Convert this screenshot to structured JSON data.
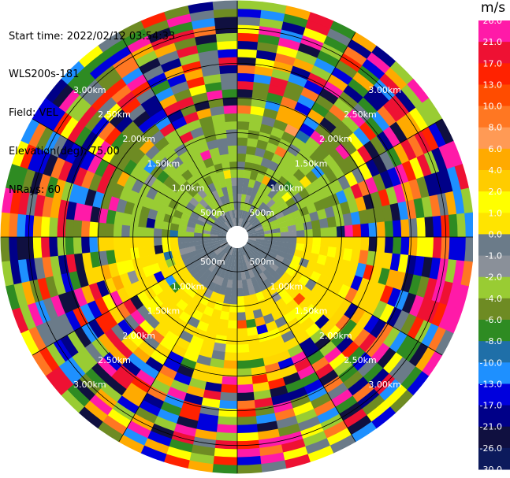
{
  "header": {
    "start_time": "Start time: 2022/02/12 03:54:33",
    "instrument": "WLS200s-181",
    "field": "Field: VEL",
    "elevation": "Elevation(deg): 75.00",
    "nrays": "NRays: 60"
  },
  "colorbar": {
    "unit": "m/s",
    "ticks": [
      "26.0",
      "21.0",
      "17.0",
      "13.0",
      "10.0",
      "8.0",
      "6.0",
      "4.0",
      "2.0",
      "1.0",
      "0.0",
      "-1.0",
      "-2.0",
      "-4.0",
      "-6.0",
      "-8.0",
      "-10.0",
      "-13.0",
      "-17.0",
      "-21.0",
      "-26.0",
      "-30.0"
    ],
    "colors": [
      "#ff1aa8",
      "#ee1133",
      "#ff2200",
      "#ff4c00",
      "#ff7722",
      "#ff9a55",
      "#ffaa00",
      "#ffcc00",
      "#ffff00",
      "#ffe400",
      "#6b7b89",
      "#8a9099",
      "#99cc33",
      "#6e8b23",
      "#2e8b22",
      "#1f6fa8",
      "#1e90ff",
      "#0000dd",
      "#000088",
      "#101040",
      "#0c1a5c"
    ]
  },
  "chart_data": {
    "type": "heatmap",
    "title": "",
    "field": "VEL",
    "unit": "m/s",
    "elevation_deg": 75.0,
    "nrays": 60,
    "range_rings_km": [
      0.5,
      1.0,
      1.5,
      2.0,
      2.5,
      3.0
    ],
    "range_labels": [
      "500m",
      "1.00km",
      "1.50km",
      "2.00km",
      "2.50km",
      "3.00km"
    ],
    "max_range_km": 3.4,
    "value_ranges": {
      "0-0.8km": "mostly 0.0 (grey), yellow-green 1.0 to the north",
      "0.8-1.8km": "north sector -2.0 (green), south sector 2.0 to 4.0 (yellow)",
      "1.8-3.4km": "noisy, values spanning -30.0 to 26.0"
    }
  }
}
